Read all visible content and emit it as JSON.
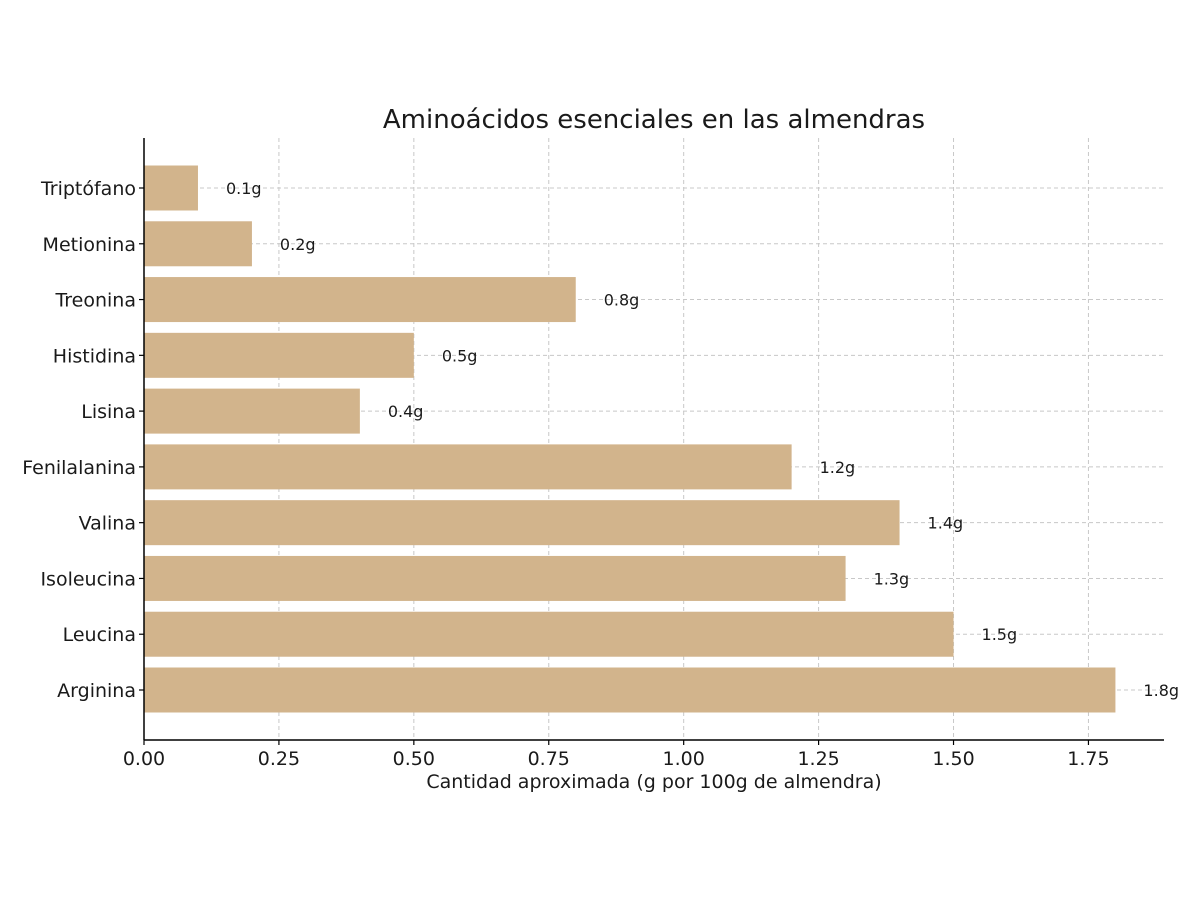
{
  "chart_data": {
    "type": "bar",
    "orientation": "horizontal",
    "title": "Aminoácidos esenciales en las almendras",
    "xlabel": "Cantidad aproximada (g por 100g de almendra)",
    "ylabel": "",
    "categories": [
      "Arginina",
      "Leucina",
      "Isoleucina",
      "Valina",
      "Fenilalanina",
      "Lisina",
      "Histidina",
      "Treonina",
      "Metionina",
      "Triptófano"
    ],
    "values": [
      1.8,
      1.5,
      1.3,
      1.4,
      1.2,
      0.4,
      0.5,
      0.8,
      0.2,
      0.1
    ],
    "value_labels": [
      "1.8g",
      "1.5g",
      "1.3g",
      "1.4g",
      "1.2g",
      "0.4g",
      "0.5g",
      "0.8g",
      "0.2g",
      "0.1g"
    ],
    "xlim": [
      0,
      1.89
    ],
    "x_ticks": [
      0,
      0.25,
      0.5,
      0.75,
      1.0,
      1.25,
      1.5,
      1.75
    ],
    "x_tick_labels": [
      "0.00",
      "0.25",
      "0.50",
      "0.75",
      "1.00",
      "1.25",
      "1.50",
      "1.75"
    ],
    "grid": true,
    "legend": "none",
    "bar_color": "#d2b48c"
  }
}
